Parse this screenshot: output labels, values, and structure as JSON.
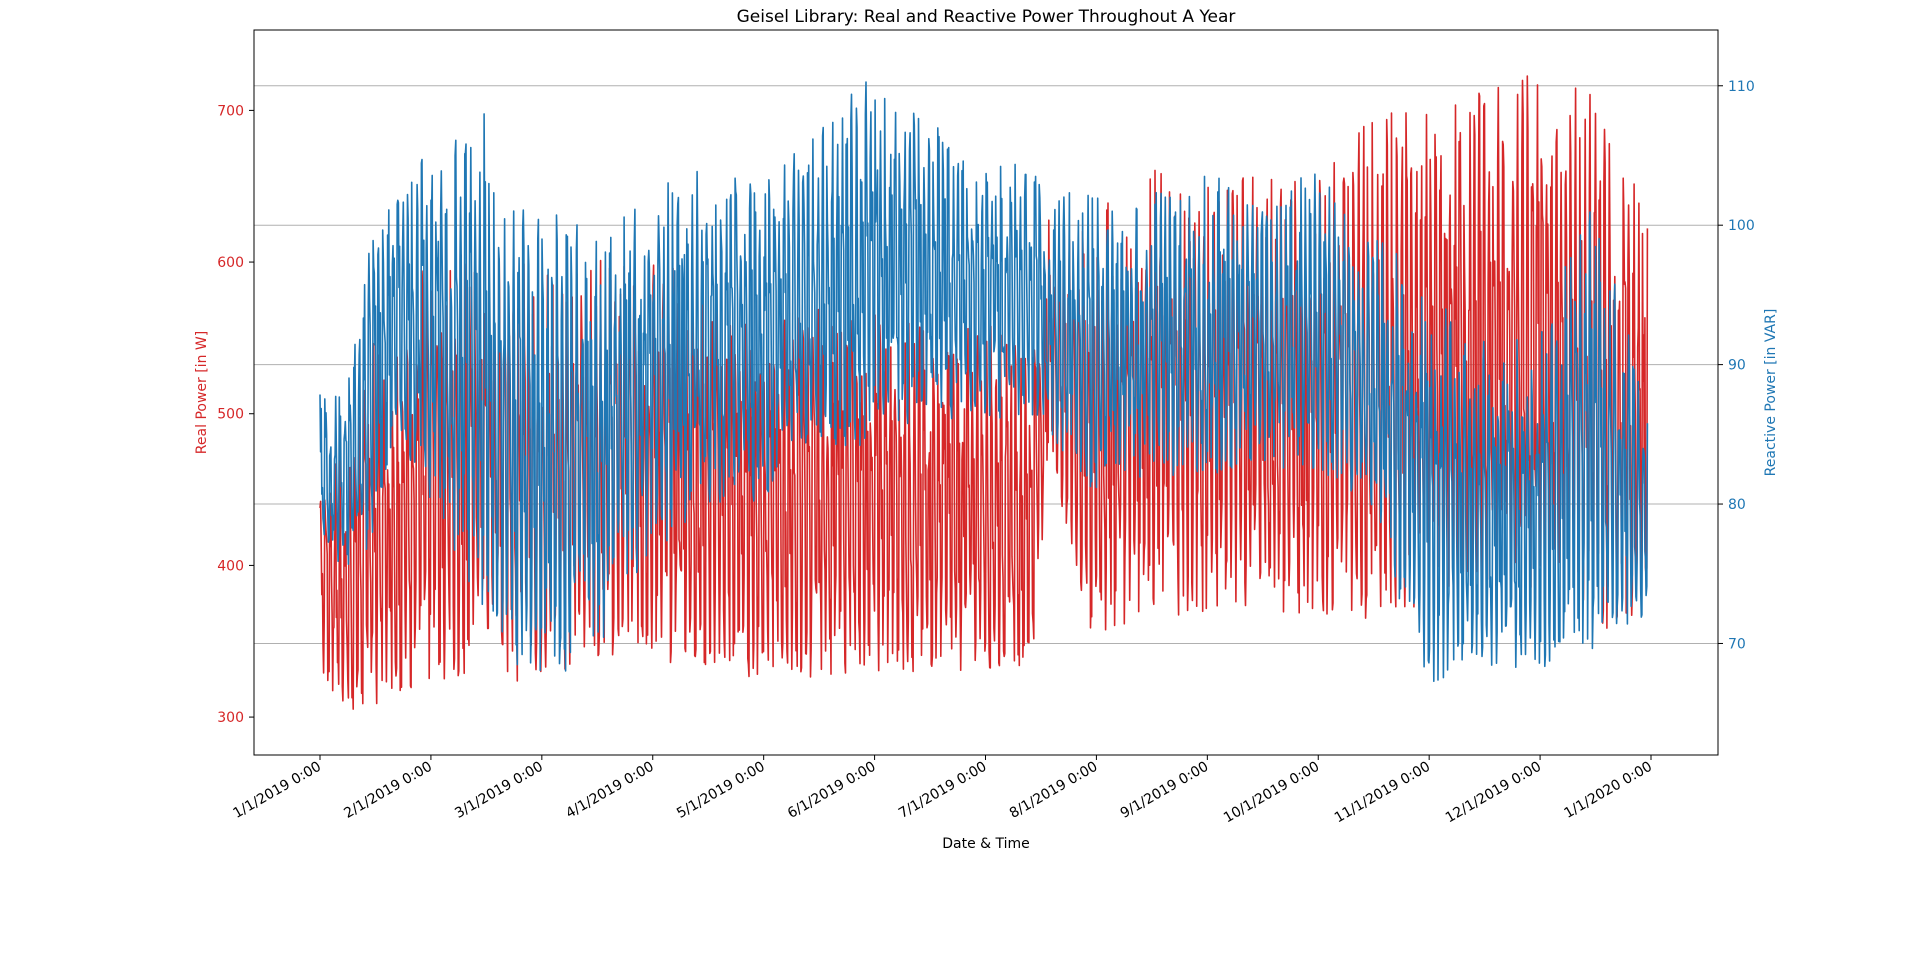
{
  "chart_data": {
    "type": "line",
    "title": "Geisel Library: Real and Reactive Power Throughout A Year",
    "xlabel": "Date & Time",
    "x_ticks": [
      "1/1/2019 0:00",
      "2/1/2019 0:00",
      "3/1/2019 0:00",
      "4/1/2019 0:00",
      "5/1/2019 0:00",
      "6/1/2019 0:00",
      "7/1/2019 0:00",
      "8/1/2019 0:00",
      "9/1/2019 0:00",
      "10/1/2019 0:00",
      "11/1/2019 0:00",
      "12/1/2019 0:00",
      "1/1/2020 0:00"
    ],
    "x_range": [
      "1/1/2019",
      "12/31/2019"
    ],
    "grid": "horizontal lines at right-axis ticks",
    "y_left": {
      "label": "Real Power [in W]",
      "color": "#d62728",
      "ticks": [
        300,
        400,
        500,
        600,
        700
      ],
      "ylim": [
        275,
        753
      ]
    },
    "y_right": {
      "label": "Reactive Power [in VAR]",
      "color": "#1f77b4",
      "ticks": [
        70,
        80,
        90,
        100,
        110
      ],
      "ylim": [
        62,
        114
      ]
    },
    "series": [
      {
        "axis": "left",
        "color": "#d62728",
        "envelope": [
          {
            "x": "1/1/2019",
            "min": 330,
            "max": 470
          },
          {
            "x": "1/8/2019",
            "min": 300,
            "max": 470
          },
          {
            "x": "1/15/2019",
            "min": 300,
            "max": 550
          },
          {
            "x": "1/22/2019",
            "min": 310,
            "max": 560
          },
          {
            "x": "2/1/2019",
            "min": 320,
            "max": 615
          },
          {
            "x": "2/15/2019",
            "min": 330,
            "max": 620
          },
          {
            "x": "3/1/2019",
            "min": 320,
            "max": 620
          },
          {
            "x": "3/15/2019",
            "min": 340,
            "max": 600
          },
          {
            "x": "4/1/2019",
            "min": 340,
            "max": 605
          },
          {
            "x": "4/15/2019",
            "min": 330,
            "max": 590
          },
          {
            "x": "5/1/2019",
            "min": 325,
            "max": 560
          },
          {
            "x": "5/15/2019",
            "min": 325,
            "max": 570
          },
          {
            "x": "6/1/2019",
            "min": 330,
            "max": 570
          },
          {
            "x": "6/15/2019",
            "min": 325,
            "max": 560
          },
          {
            "x": "7/1/2019",
            "min": 330,
            "max": 565
          },
          {
            "x": "7/15/2019",
            "min": 330,
            "max": 540
          },
          {
            "x": "7/20/2019",
            "min": 470,
            "max": 635
          },
          {
            "x": "8/1/2019",
            "min": 340,
            "max": 630
          },
          {
            "x": "8/15/2019",
            "min": 370,
            "max": 665
          },
          {
            "x": "9/1/2019",
            "min": 365,
            "max": 660
          },
          {
            "x": "9/15/2019",
            "min": 365,
            "max": 665
          },
          {
            "x": "10/1/2019",
            "min": 365,
            "max": 655
          },
          {
            "x": "10/15/2019",
            "min": 365,
            "max": 700
          },
          {
            "x": "11/1/2019",
            "min": 375,
            "max": 700
          },
          {
            "x": "11/15/2019",
            "min": 380,
            "max": 715
          },
          {
            "x": "12/1/2019",
            "min": 380,
            "max": 730
          },
          {
            "x": "12/15/2019",
            "min": 360,
            "max": 715
          },
          {
            "x": "12/31/2019",
            "min": 355,
            "max": 640
          }
        ]
      },
      {
        "axis": "right",
        "color": "#1f77b4",
        "envelope": [
          {
            "x": "1/1/2019",
            "min": 77,
            "max": 88
          },
          {
            "x": "1/8/2019",
            "min": 75,
            "max": 88
          },
          {
            "x": "1/15/2019",
            "min": 77,
            "max": 100
          },
          {
            "x": "1/22/2019",
            "min": 85,
            "max": 103
          },
          {
            "x": "2/1/2019",
            "min": 80,
            "max": 106
          },
          {
            "x": "2/15/2019",
            "min": 72,
            "max": 108
          },
          {
            "x": "3/1/2019",
            "min": 66,
            "max": 102
          },
          {
            "x": "3/15/2019",
            "min": 68,
            "max": 100
          },
          {
            "x": "4/1/2019",
            "min": 75,
            "max": 106
          },
          {
            "x": "4/15/2019",
            "min": 80,
            "max": 104
          },
          {
            "x": "5/1/2019",
            "min": 80,
            "max": 104
          },
          {
            "x": "5/15/2019",
            "min": 84,
            "max": 106
          },
          {
            "x": "6/1/2019",
            "min": 84,
            "max": 111
          },
          {
            "x": "6/15/2019",
            "min": 86,
            "max": 108
          },
          {
            "x": "7/1/2019",
            "min": 86,
            "max": 106
          },
          {
            "x": "7/15/2019",
            "min": 86,
            "max": 104
          },
          {
            "x": "8/1/2019",
            "min": 80,
            "max": 102
          },
          {
            "x": "8/15/2019",
            "min": 82,
            "max": 102
          },
          {
            "x": "9/1/2019",
            "min": 82,
            "max": 104
          },
          {
            "x": "9/15/2019",
            "min": 83,
            "max": 102
          },
          {
            "x": "10/1/2019",
            "min": 82,
            "max": 104
          },
          {
            "x": "10/15/2019",
            "min": 80,
            "max": 100
          },
          {
            "x": "11/1/2019",
            "min": 67,
            "max": 96
          },
          {
            "x": "11/15/2019",
            "min": 68,
            "max": 92
          },
          {
            "x": "12/1/2019",
            "min": 68,
            "max": 92
          },
          {
            "x": "12/15/2019",
            "min": 69,
            "max": 103
          },
          {
            "x": "12/31/2019",
            "min": 72,
            "max": 87
          }
        ]
      }
    ]
  }
}
